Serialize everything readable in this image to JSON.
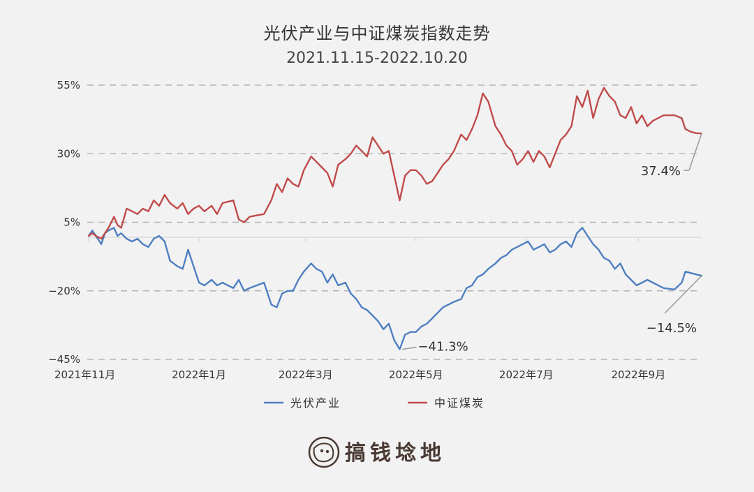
{
  "chart_data": {
    "type": "line",
    "title": "光伏产业与中证煤炭指数走势",
    "subtitle": "2021.11.15-2022.10.20",
    "xlabel": "",
    "ylabel": "",
    "x_start": "2021-11-15",
    "x_end": "2022-10-20",
    "ylim": [
      -45,
      55
    ],
    "y_ticks": [
      {
        "value": 55,
        "label": "55%"
      },
      {
        "value": 30,
        "label": "30%"
      },
      {
        "value": 5,
        "label": "5%"
      },
      {
        "value": -20,
        "label": "−20%"
      },
      {
        "value": -45,
        "label": "−45%"
      }
    ],
    "x_ticks": [
      {
        "date": "2021-11-15",
        "label": "2021年11月"
      },
      {
        "date": "2022-01-15",
        "label": "2022年1月"
      },
      {
        "date": "2022-03-15",
        "label": "2022年3月"
      },
      {
        "date": "2022-05-15",
        "label": "2022年5月"
      },
      {
        "date": "2022-07-15",
        "label": "2022年7月"
      },
      {
        "date": "2022-09-15",
        "label": "2022年9月"
      }
    ],
    "grid": true,
    "legend_position": "bottom",
    "series": [
      {
        "name": "光伏产业",
        "color": "#4f7fc1",
        "points": [
          [
            "2021-11-15",
            0
          ],
          [
            "2021-11-17",
            2
          ],
          [
            "2021-11-19",
            0
          ],
          [
            "2021-11-22",
            -3
          ],
          [
            "2021-11-24",
            1
          ],
          [
            "2021-11-26",
            2
          ],
          [
            "2021-11-29",
            3
          ],
          [
            "2021-12-01",
            0
          ],
          [
            "2021-12-03",
            1
          ],
          [
            "2021-12-06",
            -1
          ],
          [
            "2021-12-09",
            -2
          ],
          [
            "2021-12-12",
            -1
          ],
          [
            "2021-12-15",
            -3
          ],
          [
            "2021-12-18",
            -4
          ],
          [
            "2021-12-21",
            -1
          ],
          [
            "2021-12-24",
            0
          ],
          [
            "2021-12-27",
            -2
          ],
          [
            "2021-12-30",
            -9
          ],
          [
            "2022-01-03",
            -11
          ],
          [
            "2022-01-06",
            -12
          ],
          [
            "2022-01-09",
            -5
          ],
          [
            "2022-01-12",
            -11
          ],
          [
            "2022-01-15",
            -17
          ],
          [
            "2022-01-18",
            -18
          ],
          [
            "2022-01-22",
            -16
          ],
          [
            "2022-01-25",
            -18
          ],
          [
            "2022-01-28",
            -17
          ],
          [
            "2022-02-03",
            -19
          ],
          [
            "2022-02-06",
            -16
          ],
          [
            "2022-02-09",
            -20
          ],
          [
            "2022-02-12",
            -19
          ],
          [
            "2022-02-20",
            -17
          ],
          [
            "2022-02-24",
            -25
          ],
          [
            "2022-02-27",
            -26
          ],
          [
            "2022-03-02",
            -21
          ],
          [
            "2022-03-05",
            -20
          ],
          [
            "2022-03-08",
            -20
          ],
          [
            "2022-03-11",
            -16
          ],
          [
            "2022-03-14",
            -13
          ],
          [
            "2022-03-18",
            -10
          ],
          [
            "2022-03-21",
            -12
          ],
          [
            "2022-03-24",
            -13
          ],
          [
            "2022-03-27",
            -17
          ],
          [
            "2022-03-30",
            -14
          ],
          [
            "2022-04-02",
            -18
          ],
          [
            "2022-04-06",
            -17
          ],
          [
            "2022-04-09",
            -21
          ],
          [
            "2022-04-12",
            -23
          ],
          [
            "2022-04-15",
            -26
          ],
          [
            "2022-04-18",
            -27
          ],
          [
            "2022-04-21",
            -29
          ],
          [
            "2022-04-24",
            -31
          ],
          [
            "2022-04-27",
            -34
          ],
          [
            "2022-04-30",
            -32
          ],
          [
            "2022-05-03",
            -38
          ],
          [
            "2022-05-06",
            -41.3
          ],
          [
            "2022-05-09",
            -36
          ],
          [
            "2022-05-12",
            -35
          ],
          [
            "2022-05-15",
            -35
          ],
          [
            "2022-05-18",
            -33
          ],
          [
            "2022-05-21",
            -32
          ],
          [
            "2022-05-24",
            -30
          ],
          [
            "2022-05-27",
            -28
          ],
          [
            "2022-05-30",
            -26
          ],
          [
            "2022-06-02",
            -25
          ],
          [
            "2022-06-05",
            -24
          ],
          [
            "2022-06-09",
            -23
          ],
          [
            "2022-06-12",
            -19
          ],
          [
            "2022-06-15",
            -18
          ],
          [
            "2022-06-18",
            -15
          ],
          [
            "2022-06-21",
            -14
          ],
          [
            "2022-06-24",
            -12
          ],
          [
            "2022-06-28",
            -10
          ],
          [
            "2022-07-01",
            -8
          ],
          [
            "2022-07-04",
            -7
          ],
          [
            "2022-07-07",
            -5
          ],
          [
            "2022-07-10",
            -4
          ],
          [
            "2022-07-13",
            -3
          ],
          [
            "2022-07-16",
            -2
          ],
          [
            "2022-07-19",
            -5
          ],
          [
            "2022-07-22",
            -4
          ],
          [
            "2022-07-25",
            -3
          ],
          [
            "2022-07-28",
            -6
          ],
          [
            "2022-07-31",
            -5
          ],
          [
            "2022-08-03",
            -3
          ],
          [
            "2022-08-06",
            -2
          ],
          [
            "2022-08-09",
            -4
          ],
          [
            "2022-08-12",
            1
          ],
          [
            "2022-08-15",
            3
          ],
          [
            "2022-08-18",
            0
          ],
          [
            "2022-08-21",
            -3
          ],
          [
            "2022-08-24",
            -5
          ],
          [
            "2022-08-27",
            -8
          ],
          [
            "2022-08-30",
            -9
          ],
          [
            "2022-09-02",
            -12
          ],
          [
            "2022-09-05",
            -10
          ],
          [
            "2022-09-08",
            -14
          ],
          [
            "2022-09-11",
            -16
          ],
          [
            "2022-09-14",
            -18
          ],
          [
            "2022-09-17",
            -17
          ],
          [
            "2022-09-20",
            -16
          ],
          [
            "2022-09-23",
            -17
          ],
          [
            "2022-09-26",
            -18
          ],
          [
            "2022-09-29",
            -19
          ],
          [
            "2022-10-05",
            -19.5
          ],
          [
            "2022-10-09",
            -17
          ],
          [
            "2022-10-11",
            -13
          ],
          [
            "2022-10-14",
            -13.5
          ],
          [
            "2022-10-17",
            -14
          ],
          [
            "2022-10-20",
            -14.5
          ]
        ]
      },
      {
        "name": "中证煤炭",
        "color": "#c04b4b",
        "points": [
          [
            "2021-11-15",
            0
          ],
          [
            "2021-11-17",
            1
          ],
          [
            "2021-11-19",
            0
          ],
          [
            "2021-11-22",
            -1
          ],
          [
            "2021-11-24",
            1
          ],
          [
            "2021-11-26",
            3
          ],
          [
            "2021-11-29",
            7
          ],
          [
            "2021-12-01",
            4
          ],
          [
            "2021-12-03",
            3
          ],
          [
            "2021-12-06",
            10
          ],
          [
            "2021-12-09",
            9
          ],
          [
            "2021-12-12",
            8
          ],
          [
            "2021-12-15",
            10
          ],
          [
            "2021-12-18",
            9
          ],
          [
            "2021-12-21",
            13
          ],
          [
            "2021-12-24",
            11
          ],
          [
            "2021-12-27",
            15
          ],
          [
            "2021-12-30",
            12
          ],
          [
            "2022-01-03",
            10
          ],
          [
            "2022-01-06",
            12
          ],
          [
            "2022-01-09",
            8
          ],
          [
            "2022-01-12",
            10
          ],
          [
            "2022-01-15",
            11
          ],
          [
            "2022-01-18",
            9
          ],
          [
            "2022-01-22",
            11
          ],
          [
            "2022-01-25",
            8
          ],
          [
            "2022-01-28",
            12
          ],
          [
            "2022-02-03",
            13
          ],
          [
            "2022-02-06",
            6
          ],
          [
            "2022-02-09",
            5
          ],
          [
            "2022-02-12",
            7
          ],
          [
            "2022-02-20",
            8
          ],
          [
            "2022-02-24",
            13
          ],
          [
            "2022-02-27",
            19
          ],
          [
            "2022-03-02",
            16
          ],
          [
            "2022-03-05",
            21
          ],
          [
            "2022-03-08",
            19
          ],
          [
            "2022-03-11",
            18
          ],
          [
            "2022-03-14",
            24
          ],
          [
            "2022-03-18",
            29
          ],
          [
            "2022-03-21",
            27
          ],
          [
            "2022-03-24",
            25
          ],
          [
            "2022-03-27",
            23
          ],
          [
            "2022-03-30",
            18
          ],
          [
            "2022-04-02",
            26
          ],
          [
            "2022-04-06",
            28
          ],
          [
            "2022-04-09",
            30
          ],
          [
            "2022-04-12",
            33
          ],
          [
            "2022-04-15",
            31
          ],
          [
            "2022-04-18",
            29
          ],
          [
            "2022-04-21",
            36
          ],
          [
            "2022-04-24",
            33
          ],
          [
            "2022-04-27",
            30
          ],
          [
            "2022-04-30",
            31
          ],
          [
            "2022-05-03",
            22
          ],
          [
            "2022-05-06",
            13
          ],
          [
            "2022-05-09",
            22
          ],
          [
            "2022-05-12",
            24
          ],
          [
            "2022-05-15",
            24
          ],
          [
            "2022-05-18",
            22
          ],
          [
            "2022-05-21",
            19
          ],
          [
            "2022-05-24",
            20
          ],
          [
            "2022-05-27",
            23
          ],
          [
            "2022-05-30",
            26
          ],
          [
            "2022-06-02",
            28
          ],
          [
            "2022-06-05",
            31
          ],
          [
            "2022-06-09",
            37
          ],
          [
            "2022-06-12",
            35
          ],
          [
            "2022-06-15",
            39
          ],
          [
            "2022-06-18",
            44
          ],
          [
            "2022-06-21",
            52
          ],
          [
            "2022-06-24",
            49
          ],
          [
            "2022-06-28",
            40
          ],
          [
            "2022-07-01",
            37
          ],
          [
            "2022-07-04",
            33
          ],
          [
            "2022-07-07",
            31
          ],
          [
            "2022-07-10",
            26
          ],
          [
            "2022-07-13",
            28
          ],
          [
            "2022-07-16",
            31
          ],
          [
            "2022-07-19",
            27
          ],
          [
            "2022-07-22",
            31
          ],
          [
            "2022-07-25",
            29
          ],
          [
            "2022-07-28",
            25
          ],
          [
            "2022-07-31",
            30
          ],
          [
            "2022-08-03",
            35
          ],
          [
            "2022-08-06",
            37
          ],
          [
            "2022-08-09",
            40
          ],
          [
            "2022-08-12",
            51
          ],
          [
            "2022-08-15",
            47
          ],
          [
            "2022-08-18",
            53
          ],
          [
            "2022-08-21",
            43
          ],
          [
            "2022-08-24",
            50
          ],
          [
            "2022-08-27",
            54
          ],
          [
            "2022-08-30",
            51
          ],
          [
            "2022-09-02",
            49
          ],
          [
            "2022-09-05",
            44
          ],
          [
            "2022-09-08",
            43
          ],
          [
            "2022-09-11",
            47
          ],
          [
            "2022-09-14",
            41
          ],
          [
            "2022-09-17",
            44
          ],
          [
            "2022-09-20",
            40
          ],
          [
            "2022-09-23",
            42
          ],
          [
            "2022-09-26",
            43
          ],
          [
            "2022-09-29",
            44
          ],
          [
            "2022-10-05",
            44
          ],
          [
            "2022-10-09",
            43
          ],
          [
            "2022-10-11",
            39
          ],
          [
            "2022-10-14",
            38
          ],
          [
            "2022-10-17",
            37.5
          ],
          [
            "2022-10-20",
            37.4
          ]
        ]
      }
    ],
    "annotations": [
      {
        "label": "−41.3%",
        "date": "2022-05-06",
        "value": -41.3,
        "series": "光伏产业"
      },
      {
        "label": "37.4%",
        "date": "2022-10-20",
        "value": 37.4,
        "series": "中证煤炭"
      },
      {
        "label": "−14.5%",
        "date": "2022-10-20",
        "value": -14.5,
        "series": "光伏产业"
      }
    ]
  },
  "brand": {
    "name": "搞钱埝地"
  }
}
